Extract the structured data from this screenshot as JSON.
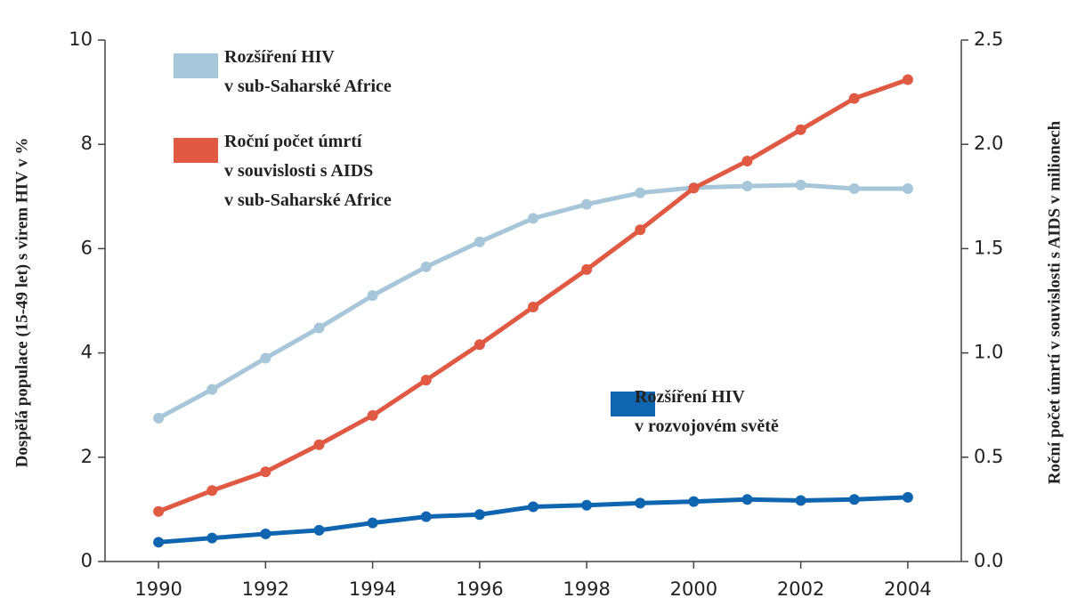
{
  "chart_data": {
    "type": "line",
    "x": [
      1990,
      1991,
      1992,
      1993,
      1994,
      1995,
      1996,
      1997,
      1998,
      1999,
      2000,
      2001,
      2002,
      2003,
      2004
    ],
    "xlim": [
      1989,
      2005
    ],
    "xticks": [
      1990,
      1992,
      1994,
      1996,
      1998,
      2000,
      2002,
      2004
    ],
    "ylim": [
      0,
      10
    ],
    "yticks": [
      0,
      2,
      4,
      6,
      8,
      10
    ],
    "y2lim": [
      0,
      2.5
    ],
    "y2ticks": [
      {
        "value": 0,
        "label": "0.0"
      },
      0.5,
      {
        "value": 1,
        "label": "1.0"
      },
      1.5,
      {
        "value": 2,
        "label": "2.0"
      },
      2.5
    ],
    "ylabel": "Dospělá populace (15-49 let) s virem HIV v %",
    "y2label": "Roční počet úmrtí v souvislosti s AIDS v milionech",
    "series": [
      {
        "name": "Rozšíření HIV\nv sub-Saharské Africe",
        "color": "#a8c6d9",
        "values": [
          2.75,
          3.3,
          3.9,
          4.48,
          5.1,
          5.65,
          6.13,
          6.58,
          6.85,
          7.07,
          7.17,
          7.2,
          7.22,
          7.15,
          7.15
        ]
      },
      {
        "name": "Roční počet úmrtí\nv souvislosti s AIDS\nv sub-Saharské Africe",
        "color": "#e05a43",
        "axis": "y2",
        "values": [
          0.24,
          0.34,
          0.43,
          0.56,
          0.7,
          0.87,
          1.04,
          1.22,
          1.4,
          1.59,
          1.79,
          1.92,
          2.07,
          2.22,
          2.31
        ]
      },
      {
        "name": "Rozšíření HIV\nv rozvojovém světě",
        "color": "#1065b0",
        "values": [
          0.37,
          0.45,
          0.53,
          0.6,
          0.74,
          0.86,
          0.9,
          1.05,
          1.08,
          1.12,
          1.15,
          1.19,
          1.17,
          1.19,
          1.23
        ]
      }
    ]
  }
}
